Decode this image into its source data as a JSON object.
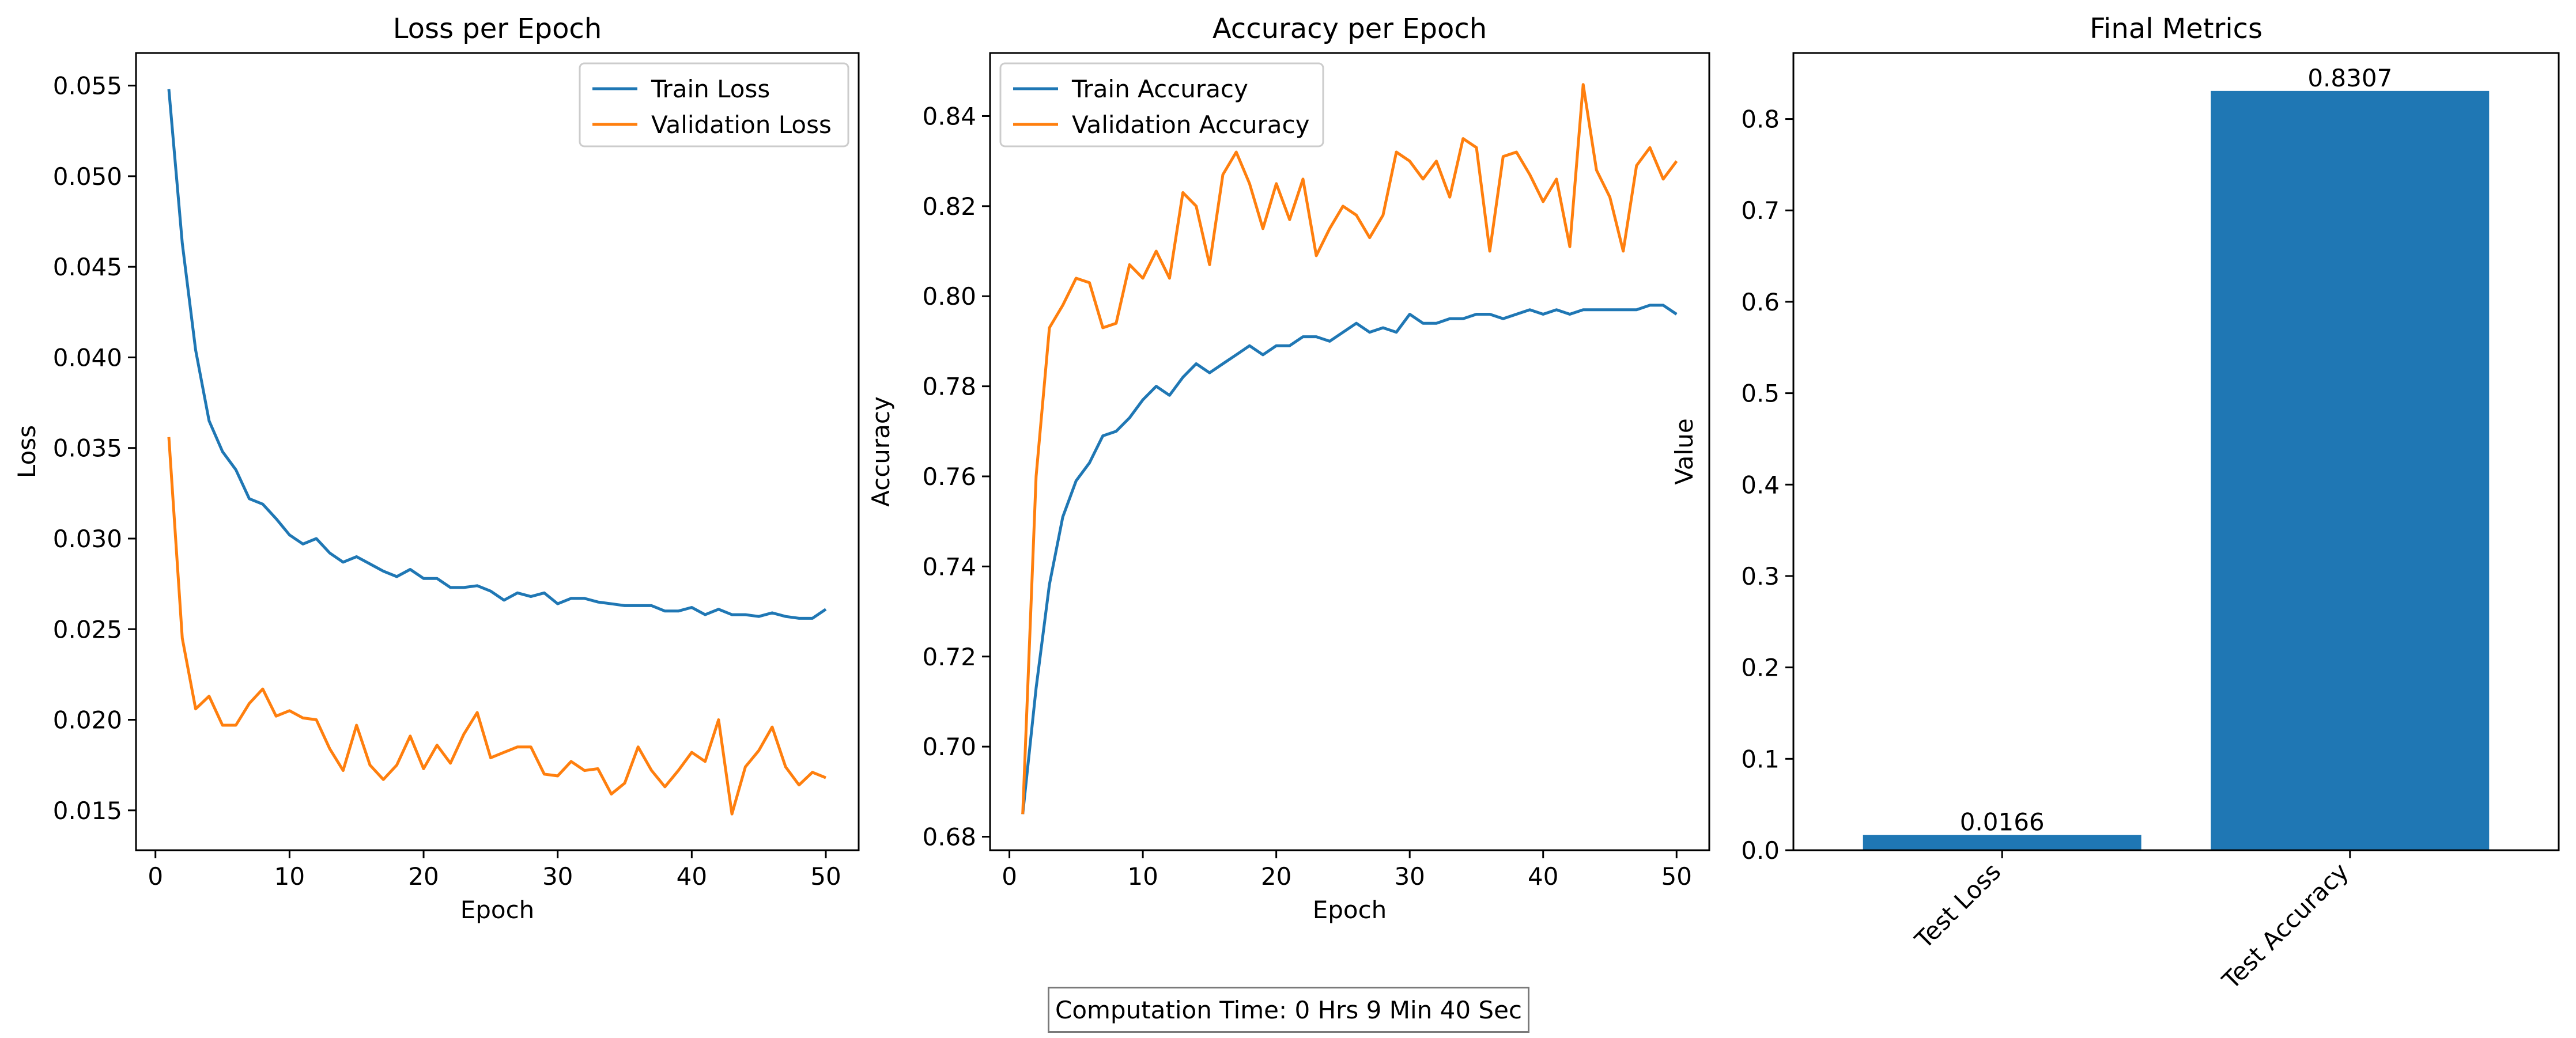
{
  "footer": {
    "computation_time": "Computation Time: 0 Hrs 9 Min 40 Sec"
  },
  "colors": {
    "train": "#1f77b4",
    "validation": "#ff7f0e",
    "bar": "#1f77b4"
  },
  "chart_data": [
    {
      "type": "line",
      "title": "Loss per Epoch",
      "xlabel": "Epoch",
      "ylabel": "Loss",
      "xlim": [
        -1.45,
        52.45
      ],
      "ylim": [
        0.0128,
        0.0568
      ],
      "xticks": [
        0,
        10,
        20,
        30,
        40,
        50
      ],
      "yticks": [
        0.015,
        0.02,
        0.025,
        0.03,
        0.035,
        0.04,
        0.045,
        0.05,
        0.055
      ],
      "ytick_labels": [
        "0.015",
        "0.020",
        "0.025",
        "0.030",
        "0.035",
        "0.040",
        "0.045",
        "0.050",
        "0.055"
      ],
      "legend": "top-right",
      "grid": false,
      "x": [
        1,
        2,
        3,
        4,
        5,
        6,
        7,
        8,
        9,
        10,
        11,
        12,
        13,
        14,
        15,
        16,
        17,
        18,
        19,
        20,
        21,
        22,
        23,
        24,
        25,
        26,
        27,
        28,
        29,
        30,
        31,
        32,
        33,
        34,
        35,
        36,
        37,
        38,
        39,
        40,
        41,
        42,
        43,
        44,
        45,
        46,
        47,
        48,
        49,
        50
      ],
      "series": [
        {
          "name": "Train Loss",
          "values": [
            0.0548,
            0.0463,
            0.0404,
            0.0365,
            0.0348,
            0.0338,
            0.0322,
            0.0319,
            0.0311,
            0.0302,
            0.0297,
            0.03,
            0.0292,
            0.0287,
            0.029,
            0.0286,
            0.0282,
            0.0279,
            0.0283,
            0.0278,
            0.0278,
            0.0273,
            0.0273,
            0.0274,
            0.0271,
            0.0266,
            0.027,
            0.0268,
            0.027,
            0.0264,
            0.0267,
            0.0267,
            0.0265,
            0.0264,
            0.0263,
            0.0263,
            0.0263,
            0.026,
            0.026,
            0.0262,
            0.0258,
            0.0261,
            0.0258,
            0.0258,
            0.0257,
            0.0259,
            0.0257,
            0.0256,
            0.0256,
            0.0261
          ]
        },
        {
          "name": "Validation Loss",
          "values": [
            0.0356,
            0.0245,
            0.0206,
            0.0213,
            0.0197,
            0.0197,
            0.0209,
            0.0217,
            0.0202,
            0.0205,
            0.0201,
            0.02,
            0.0184,
            0.0172,
            0.0197,
            0.0175,
            0.0167,
            0.0175,
            0.0191,
            0.0173,
            0.0186,
            0.0176,
            0.0192,
            0.0204,
            0.0179,
            0.0182,
            0.0185,
            0.0185,
            0.017,
            0.0169,
            0.0177,
            0.0172,
            0.0173,
            0.0159,
            0.0165,
            0.0185,
            0.0172,
            0.0163,
            0.0172,
            0.0182,
            0.0177,
            0.02,
            0.0148,
            0.0174,
            0.0183,
            0.0196,
            0.0174,
            0.0164,
            0.0171,
            0.0168
          ]
        }
      ]
    },
    {
      "type": "line",
      "title": "Accuracy per Epoch",
      "xlabel": "Epoch",
      "ylabel": "Accuracy",
      "xlim": [
        -1.45,
        52.45
      ],
      "ylim": [
        0.677,
        0.854
      ],
      "xticks": [
        0,
        10,
        20,
        30,
        40,
        50
      ],
      "yticks": [
        0.68,
        0.7,
        0.72,
        0.74,
        0.76,
        0.78,
        0.8,
        0.82,
        0.84
      ],
      "ytick_labels": [
        "0.68",
        "0.70",
        "0.72",
        "0.74",
        "0.76",
        "0.78",
        "0.80",
        "0.82",
        "0.84"
      ],
      "legend": "top-left",
      "grid": false,
      "x": [
        1,
        2,
        3,
        4,
        5,
        6,
        7,
        8,
        9,
        10,
        11,
        12,
        13,
        14,
        15,
        16,
        17,
        18,
        19,
        20,
        21,
        22,
        23,
        24,
        25,
        26,
        27,
        28,
        29,
        30,
        31,
        32,
        33,
        34,
        35,
        36,
        37,
        38,
        39,
        40,
        41,
        42,
        43,
        44,
        45,
        46,
        47,
        48,
        49,
        50
      ],
      "series": [
        {
          "name": "Train Accuracy",
          "values": [
            0.685,
            0.713,
            0.736,
            0.751,
            0.759,
            0.763,
            0.769,
            0.77,
            0.773,
            0.777,
            0.78,
            0.778,
            0.782,
            0.785,
            0.783,
            0.785,
            0.787,
            0.789,
            0.787,
            0.789,
            0.789,
            0.791,
            0.791,
            0.79,
            0.792,
            0.794,
            0.792,
            0.793,
            0.792,
            0.796,
            0.794,
            0.794,
            0.795,
            0.795,
            0.796,
            0.796,
            0.795,
            0.796,
            0.797,
            0.796,
            0.797,
            0.796,
            0.797,
            0.797,
            0.797,
            0.797,
            0.797,
            0.798,
            0.798,
            0.796
          ]
        },
        {
          "name": "Validation Accuracy",
          "values": [
            0.685,
            0.76,
            0.793,
            0.798,
            0.804,
            0.803,
            0.793,
            0.794,
            0.807,
            0.804,
            0.81,
            0.804,
            0.823,
            0.82,
            0.807,
            0.827,
            0.832,
            0.825,
            0.815,
            0.825,
            0.817,
            0.826,
            0.809,
            0.815,
            0.82,
            0.818,
            0.813,
            0.818,
            0.832,
            0.83,
            0.826,
            0.83,
            0.822,
            0.835,
            0.833,
            0.81,
            0.831,
            0.832,
            0.827,
            0.821,
            0.826,
            0.811,
            0.847,
            0.828,
            0.822,
            0.81,
            0.829,
            0.833,
            0.826,
            0.83
          ]
        }
      ]
    },
    {
      "type": "bar",
      "title": "Final Metrics",
      "xlabel": "",
      "ylabel": "Value",
      "ylim": [
        0,
        0.8722
      ],
      "yticks": [
        0.0,
        0.1,
        0.2,
        0.3,
        0.4,
        0.5,
        0.6,
        0.7,
        0.8
      ],
      "ytick_labels": [
        "0.0",
        "0.1",
        "0.2",
        "0.3",
        "0.4",
        "0.5",
        "0.6",
        "0.7",
        "0.8"
      ],
      "grid": false,
      "categories": [
        "Test Loss",
        "Test Accuracy"
      ],
      "values": [
        0.0166,
        0.8307
      ],
      "value_labels": [
        "0.0166",
        "0.8307"
      ]
    }
  ]
}
